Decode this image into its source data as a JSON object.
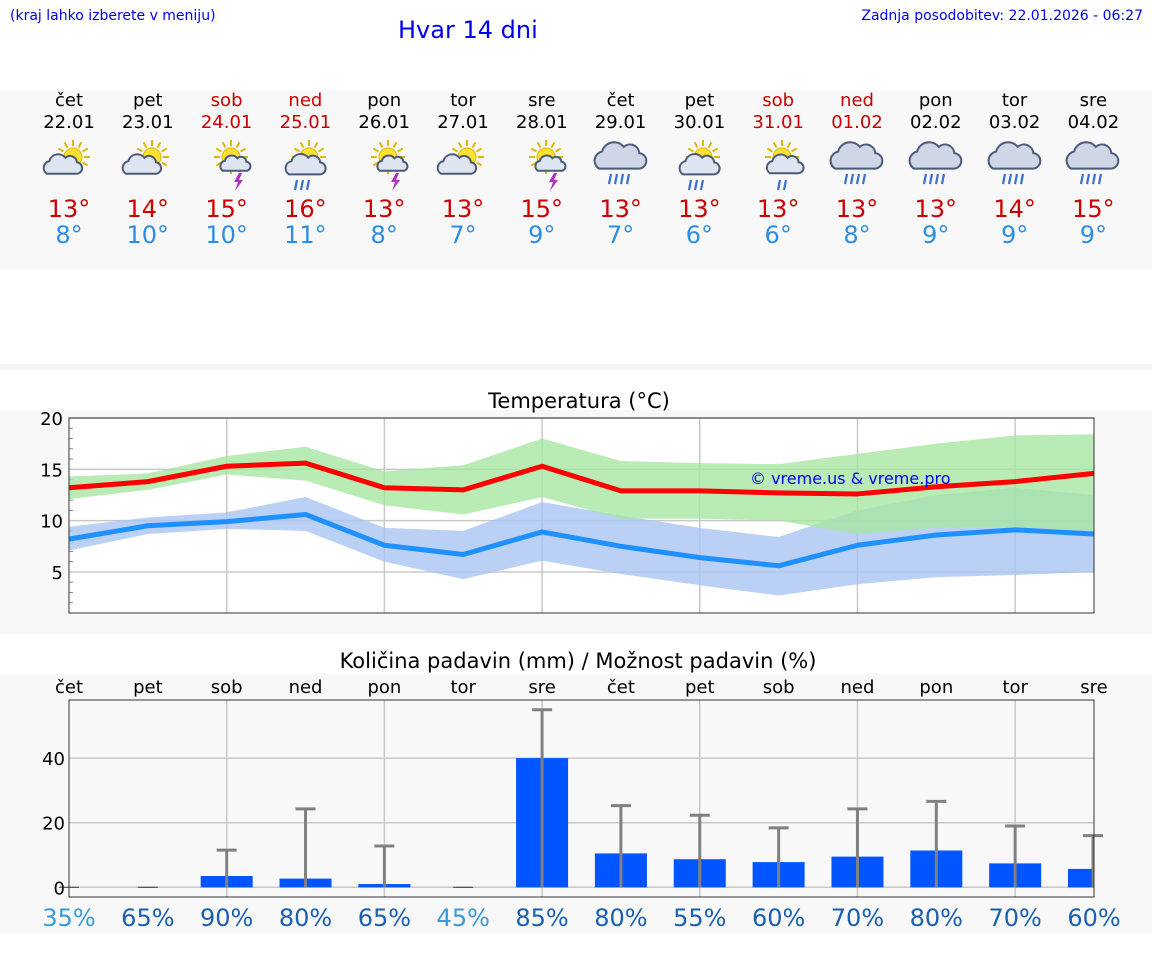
{
  "header": {
    "hint": "(kraj lahko izberete v meniju)",
    "title": "Hvar 14 dni",
    "updated": "Zadnja posodobitev: 22.01.2026 - 06:27"
  },
  "colors": {
    "link": "#0000ee",
    "weekend": "#cc0000",
    "tmax": "#ff0000",
    "tmin": "#1e90ff",
    "tmax_band": "#a8e6a3",
    "tmin_band": "#a9c4f2",
    "bar": "#0055ff",
    "errorbar": "#808080"
  },
  "days": [
    {
      "name": "čet",
      "date": "22.01",
      "weekend": false,
      "icon": "sun-cloud-icon",
      "tmax": "13°",
      "tmin": "8°"
    },
    {
      "name": "pet",
      "date": "23.01",
      "weekend": false,
      "icon": "sun-cloud-icon",
      "tmax": "14°",
      "tmin": "10°"
    },
    {
      "name": "sob",
      "date": "24.01",
      "weekend": true,
      "icon": "sun-cloud-thunder-icon",
      "tmax": "15°",
      "tmin": "10°"
    },
    {
      "name": "ned",
      "date": "25.01",
      "weekend": true,
      "icon": "sun-cloud-rain-icon",
      "tmax": "16°",
      "tmin": "11°"
    },
    {
      "name": "pon",
      "date": "26.01",
      "weekend": false,
      "icon": "sun-cloud-thunder-icon",
      "tmax": "13°",
      "tmin": "8°"
    },
    {
      "name": "tor",
      "date": "27.01",
      "weekend": false,
      "icon": "sun-cloud-icon",
      "tmax": "13°",
      "tmin": "7°"
    },
    {
      "name": "sre",
      "date": "28.01",
      "weekend": false,
      "icon": "sun-cloud-thunder-icon",
      "tmax": "15°",
      "tmin": "9°"
    },
    {
      "name": "čet",
      "date": "29.01",
      "weekend": false,
      "icon": "cloud-rain-icon",
      "tmax": "13°",
      "tmin": "7°"
    },
    {
      "name": "pet",
      "date": "30.01",
      "weekend": false,
      "icon": "sun-cloud-rain-icon",
      "tmax": "13°",
      "tmin": "6°"
    },
    {
      "name": "sob",
      "date": "31.01",
      "weekend": true,
      "icon": "sun-cloud-light-rain-icon",
      "tmax": "13°",
      "tmin": "6°"
    },
    {
      "name": "ned",
      "date": "01.02",
      "weekend": true,
      "icon": "cloud-rain-icon",
      "tmax": "13°",
      "tmin": "8°"
    },
    {
      "name": "pon",
      "date": "02.02",
      "weekend": false,
      "icon": "cloud-rain-icon",
      "tmax": "13°",
      "tmin": "9°"
    },
    {
      "name": "tor",
      "date": "03.02",
      "weekend": false,
      "icon": "cloud-rain-icon",
      "tmax": "14°",
      "tmin": "9°"
    },
    {
      "name": "sre",
      "date": "04.02",
      "weekend": false,
      "icon": "cloud-rain-icon",
      "tmax": "15°",
      "tmin": "9°"
    }
  ],
  "chart_data": [
    {
      "type": "line",
      "title": "Temperatura (°C)",
      "xlabel": "",
      "ylabel": "",
      "ylim": [
        1,
        20
      ],
      "yticks": [
        5,
        10,
        15,
        20
      ],
      "grid": true,
      "watermark": "© vreme.us & vreme.pro",
      "series": [
        {
          "name": "max",
          "values": [
            13.2,
            13.8,
            15.3,
            15.6,
            13.2,
            13.0,
            15.3,
            12.9,
            12.9,
            12.7,
            12.6,
            13.3,
            13.8,
            14.6
          ],
          "band_low": [
            12.1,
            13.0,
            14.5,
            13.9,
            11.5,
            10.6,
            12.3,
            10.2,
            10.2,
            10.0,
            8.7,
            9.3,
            9.4,
            9.0
          ],
          "band_high": [
            14.3,
            14.6,
            16.3,
            17.2,
            14.8,
            15.4,
            18.0,
            15.8,
            15.6,
            15.5,
            16.5,
            17.5,
            18.3,
            18.4
          ]
        },
        {
          "name": "min",
          "values": [
            8.2,
            9.5,
            9.9,
            10.6,
            7.6,
            6.7,
            8.9,
            7.5,
            6.4,
            5.6,
            7.6,
            8.6,
            9.1,
            8.7
          ],
          "band_low": [
            7.1,
            8.7,
            9.2,
            9.0,
            6.0,
            4.3,
            6.1,
            4.8,
            3.7,
            2.7,
            3.8,
            4.5,
            4.7,
            5.0
          ],
          "band_high": [
            9.4,
            10.3,
            10.8,
            12.3,
            9.3,
            9.0,
            11.8,
            10.5,
            9.3,
            8.4,
            11.0,
            12.5,
            13.2,
            12.5
          ]
        }
      ]
    },
    {
      "type": "bar",
      "title": "Količina padavin (mm) / Možnost padavin (%)",
      "categories": [
        "čet",
        "pet",
        "sob",
        "ned",
        "pon",
        "tor",
        "sre",
        "čet",
        "pet",
        "sob",
        "ned",
        "pon",
        "tor",
        "sre"
      ],
      "values": [
        0,
        0,
        3.5,
        2.7,
        1.0,
        0,
        40,
        10.5,
        8.7,
        7.8,
        9.5,
        11.4,
        7.4,
        5.7
      ],
      "err_high": [
        0,
        0,
        11.5,
        24.3,
        12.8,
        0,
        55,
        25.3,
        22.3,
        18.4,
        24.3,
        26.6,
        19.0,
        16.0
      ],
      "chance": [
        "35%",
        "65%",
        "90%",
        "80%",
        "65%",
        "45%",
        "85%",
        "80%",
        "55%",
        "60%",
        "70%",
        "80%",
        "70%",
        "60%"
      ],
      "chance_values": [
        35,
        65,
        90,
        80,
        65,
        45,
        85,
        80,
        55,
        60,
        70,
        80,
        70,
        60
      ],
      "ylim": [
        -3,
        58
      ],
      "yticks": [
        0,
        20,
        40
      ],
      "ytick_labels": [
        "0",
        "20",
        "40"
      ],
      "grid": true
    }
  ]
}
